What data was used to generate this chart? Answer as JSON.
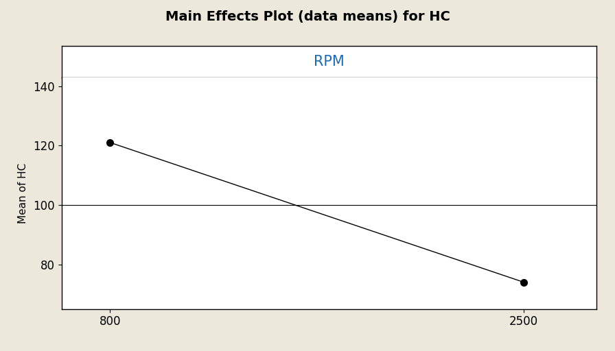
{
  "title": "Main Effects Plot (data means) for HC",
  "title_fontsize": 14,
  "title_fontweight": "bold",
  "subplot_label": "RPM",
  "subplot_label_fontsize": 15,
  "subplot_label_color": "#1a6ab5",
  "ylabel": "Mean of HC",
  "ylabel_fontsize": 11,
  "x_values": [
    800,
    2500
  ],
  "y_values": [
    121,
    74
  ],
  "x_ticks": [
    800,
    2500
  ],
  "y_ticks": [
    80,
    100,
    120,
    140
  ],
  "ylim": [
    65,
    143
  ],
  "xlim": [
    600,
    2800
  ],
  "background_color": "#ede8dc",
  "plot_bg_color": "#ffffff",
  "line_color": "#000000",
  "marker_color": "#000000",
  "marker_size": 7,
  "line_width": 1.0,
  "tick_fontsize": 12,
  "hline_y": 100
}
